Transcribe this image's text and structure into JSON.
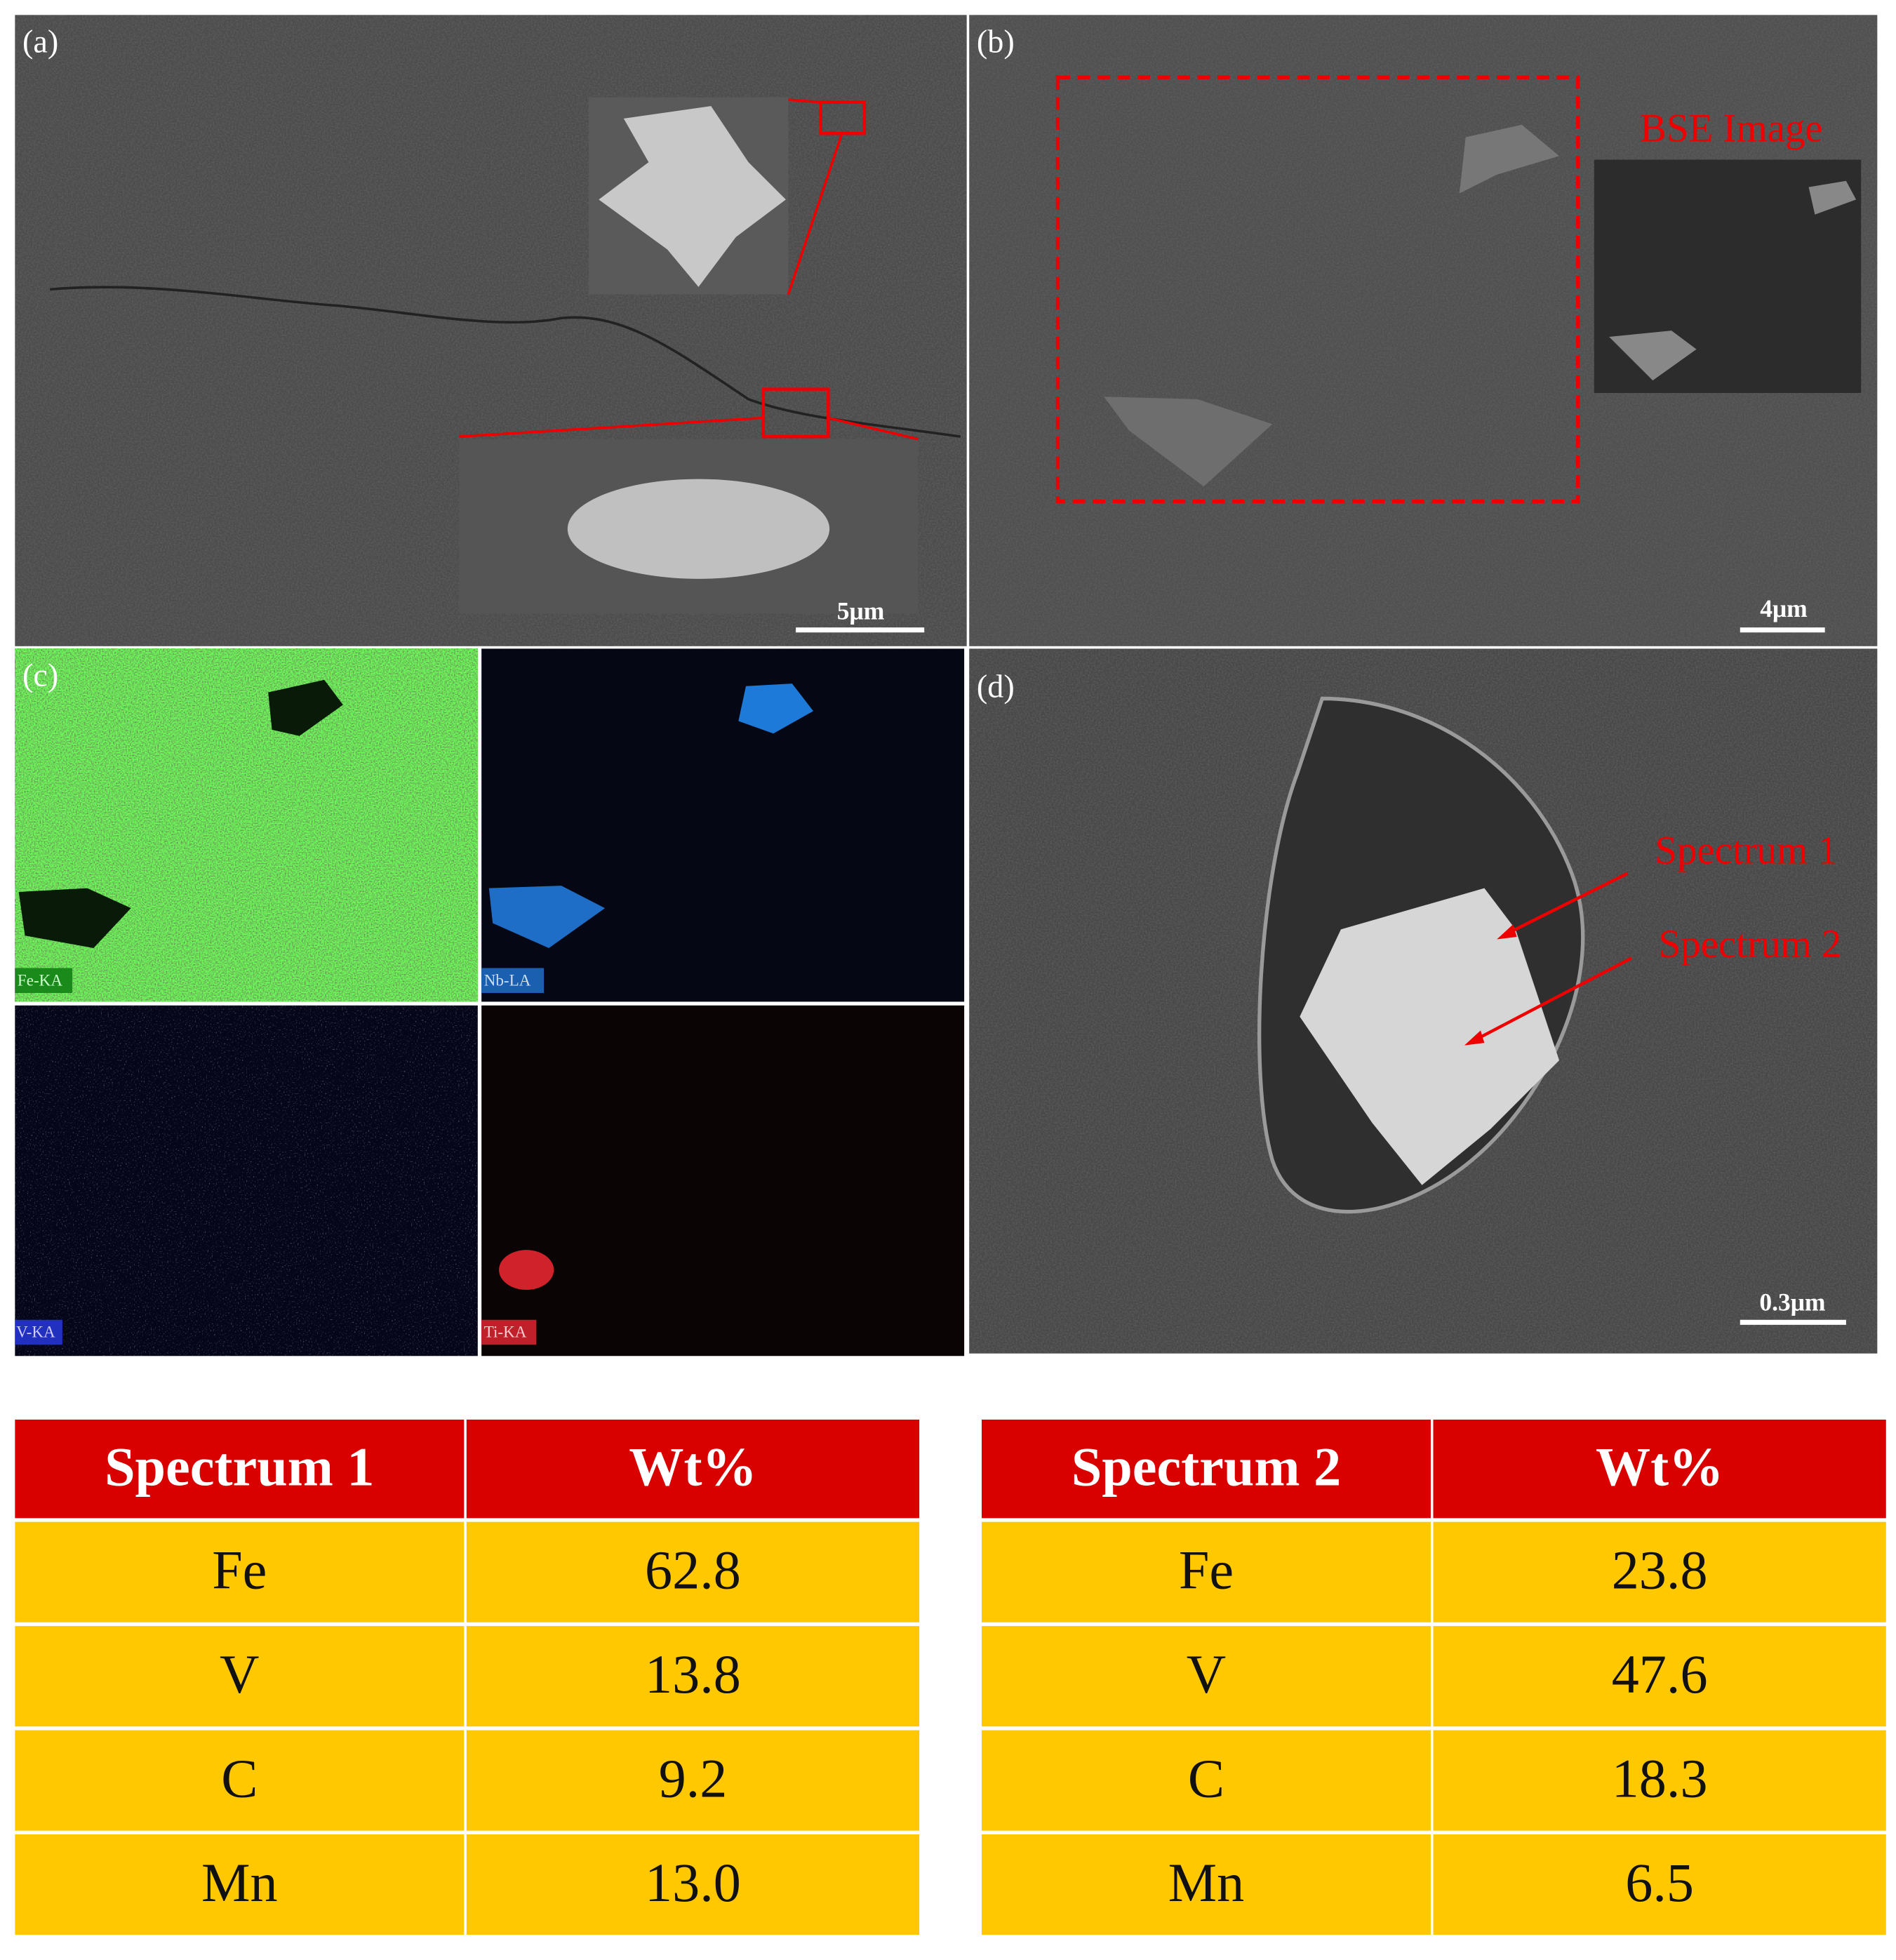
{
  "panels": [
    {
      "label": "(a)",
      "scale_bar": "5μm"
    },
    {
      "label": "(b)",
      "scale_bar": "4μm",
      "annotation": "BSE Image"
    },
    {
      "label": "(c)",
      "maps": [
        "Fe-KA",
        "Nb-LA",
        "V-KA",
        "Ti-KA"
      ]
    },
    {
      "label": "(d)",
      "scale_bar": "0.3μm",
      "annotations": [
        "Spectrum 1",
        "Spectrum 2"
      ]
    }
  ],
  "tables": [
    {
      "header": [
        "Spectrum 1",
        "Wt%"
      ],
      "rows": [
        [
          "Fe",
          "62.8"
        ],
        [
          "V",
          "13.8"
        ],
        [
          "C",
          "9.2"
        ],
        [
          "Mn",
          "13.0"
        ]
      ]
    },
    {
      "header": [
        "Spectrum 2",
        "Wt%"
      ],
      "rows": [
        [
          "Fe",
          "23.8"
        ],
        [
          "V",
          "47.6"
        ],
        [
          "C",
          "18.3"
        ],
        [
          "Mn",
          "6.5"
        ]
      ]
    }
  ]
}
